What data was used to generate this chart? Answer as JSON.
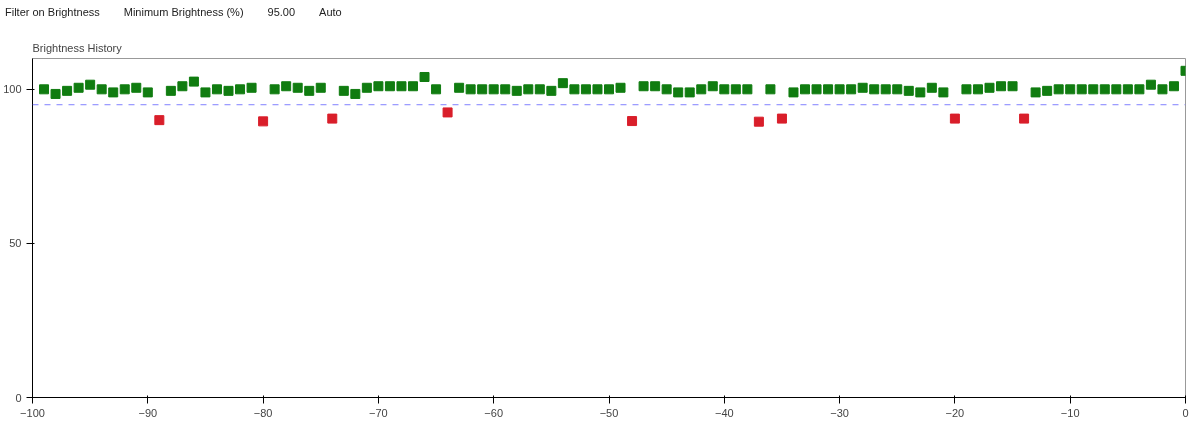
{
  "chart_data": {
    "type": "scatter",
    "title": "Brightness History",
    "annotations": [
      "Filter on Brightness",
      "Minimum Brightness (%)",
      "95.00",
      "Auto"
    ],
    "series": [
      {
        "color": "#107c10",
        "x": [
          -99,
          -98,
          -97,
          -96,
          -95,
          -94,
          -93,
          -92,
          -91,
          -90,
          -88,
          -87,
          -86,
          -85,
          -84,
          -83,
          -82,
          -81,
          -79,
          -78,
          -77,
          -76,
          -75,
          -73,
          -72,
          -71,
          -70,
          -69,
          -68,
          -67,
          -66,
          -65,
          -63,
          -62,
          -61,
          -60,
          -59,
          -58,
          -57,
          -56,
          -55,
          -54,
          -53,
          -52,
          -51,
          -50,
          -49,
          -47,
          -46,
          -45,
          -44,
          -43,
          -42,
          -41,
          -40,
          -39,
          -38,
          -36,
          -34,
          -33,
          -32,
          -31,
          -30,
          -29,
          -28,
          -27,
          -26,
          -25,
          -24,
          -23,
          -22,
          -21,
          -19,
          -18,
          -17,
          -16,
          -15,
          -13,
          -12,
          -11,
          -10,
          -9,
          -8,
          -7,
          -6,
          -5,
          -4,
          -3,
          -2,
          -1,
          0
        ],
        "values": [
          100,
          98.5,
          99.5,
          100.5,
          101.5,
          100,
          99,
          100,
          100.5,
          99,
          99.5,
          101,
          102.5,
          99,
          100,
          99.5,
          100,
          100.5,
          100,
          101,
          100.5,
          99.5,
          100.5,
          99.5,
          98.5,
          100.5,
          101,
          101,
          101,
          101,
          104,
          100,
          100.5,
          100,
          100,
          100,
          100,
          99.5,
          100,
          100,
          99.5,
          102,
          100,
          100,
          100,
          100,
          100.5,
          101,
          101,
          100,
          99,
          99,
          100,
          101,
          100,
          100,
          100,
          100,
          99,
          100,
          100,
          100,
          100,
          100,
          100.5,
          100,
          100,
          100,
          99.5,
          99,
          100.5,
          99,
          100,
          100,
          100.5,
          101,
          101,
          99,
          99.5,
          100,
          100,
          100,
          100,
          100,
          100,
          100,
          100,
          101.5,
          100,
          101,
          106
        ]
      },
      {
        "color": "#d91e2a",
        "x": [
          -89,
          -80,
          -74,
          -64,
          -48,
          -37,
          -35,
          -20,
          -14
        ],
        "values": [
          90,
          89.6,
          90.5,
          92.5,
          89.7,
          89.5,
          90.5,
          90.5,
          90.5
        ]
      }
    ],
    "marker": "square",
    "xlim": [
      -100,
      0
    ],
    "ylim": [
      0,
      110
    ],
    "xticks": [
      -100,
      -90,
      -80,
      -70,
      -60,
      -50,
      -40,
      -30,
      -20,
      -10,
      0
    ],
    "yticks": [
      0,
      50,
      100
    ],
    "grid": false,
    "ref_lines": [
      {
        "axis": "y",
        "value": 95,
        "color": "#8080ff",
        "line_style": "dashed"
      }
    ]
  }
}
